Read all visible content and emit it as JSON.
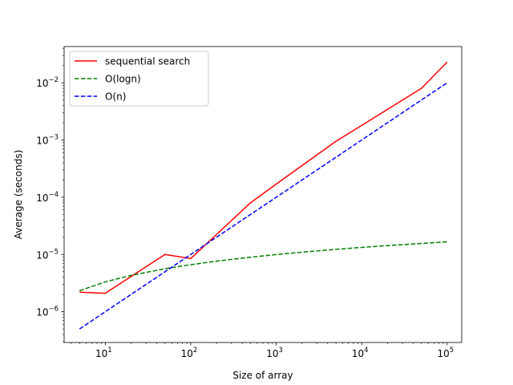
{
  "chart_data": {
    "type": "line",
    "title": "",
    "xlabel": "Size of array",
    "ylabel": "Average (seconds)",
    "xscale": "log",
    "yscale": "log",
    "xlim": [
      3.3,
      148000
    ],
    "ylim": [
      2.9e-07,
      0.043
    ],
    "xticks": [
      {
        "base": "10",
        "exp": "1",
        "value": 10
      },
      {
        "base": "10",
        "exp": "2",
        "value": 100
      },
      {
        "base": "10",
        "exp": "3",
        "value": 1000
      },
      {
        "base": "10",
        "exp": "4",
        "value": 10000
      },
      {
        "base": "10",
        "exp": "5",
        "value": 100000
      }
    ],
    "yticks": [
      {
        "base": "10",
        "exp": "−6",
        "value": 1e-06
      },
      {
        "base": "10",
        "exp": "−5",
        "value": 1e-05
      },
      {
        "base": "10",
        "exp": "−4",
        "value": 0.0001
      },
      {
        "base": "10",
        "exp": "−3",
        "value": 0.001
      },
      {
        "base": "10",
        "exp": "−2",
        "value": 0.01
      }
    ],
    "grid": false,
    "legend_position": "top-left",
    "series": [
      {
        "name": "sequential search",
        "color": "#ff0000",
        "dash": "solid",
        "x": [
          5,
          10,
          50,
          100,
          500,
          1000,
          5000,
          10000,
          50000,
          100000
        ],
        "y": [
          2.2e-06,
          2.1e-06,
          1e-05,
          8.5e-06,
          8e-05,
          0.00017,
          0.00095,
          0.0018,
          0.008,
          0.023
        ]
      },
      {
        "name": "O(logn)",
        "color": "#008000",
        "dash": "dashed",
        "x": [
          5,
          10,
          20,
          50,
          100,
          200,
          500,
          1000,
          2000,
          5000,
          10000,
          20000,
          50000,
          100000
        ],
        "y": [
          2.33e-06,
          3.32e-06,
          4.32e-06,
          5.64e-06,
          6.64e-06,
          7.64e-06,
          8.97e-06,
          9.97e-06,
          1.097e-05,
          1.229e-05,
          1.329e-05,
          1.429e-05,
          1.561e-05,
          1.661e-05
        ]
      },
      {
        "name": "O(n)",
        "color": "#0000ff",
        "dash": "dashed",
        "x": [
          5,
          100000
        ],
        "y": [
          5e-07,
          0.01
        ]
      }
    ]
  }
}
